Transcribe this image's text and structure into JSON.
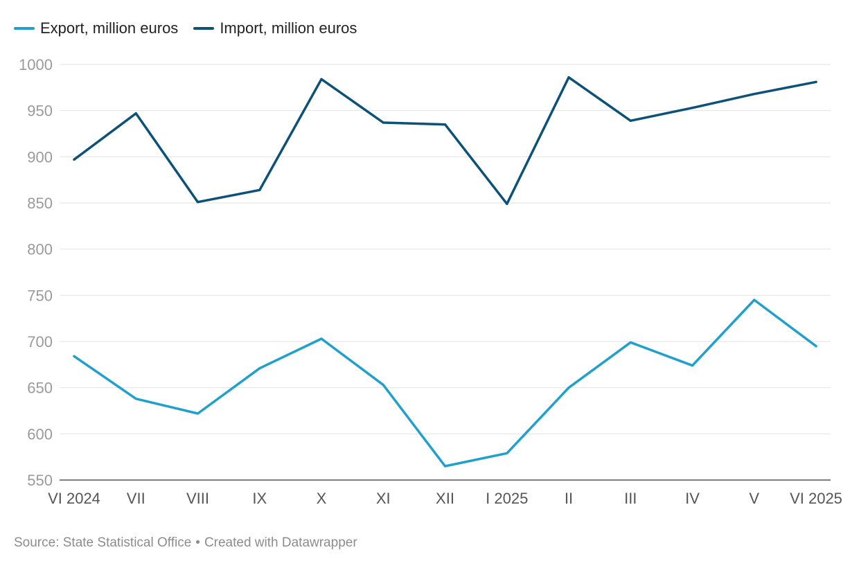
{
  "chart_data": {
    "type": "line",
    "categories": [
      "VI 2024",
      "VII",
      "VIII",
      "IX",
      "X",
      "XI",
      "XII",
      "I 2025",
      "II",
      "III",
      "IV",
      "V",
      "VI 2025"
    ],
    "series": [
      {
        "name": "Export, million euros",
        "color": "#1fa0cd",
        "values": [
          684,
          638,
          622,
          671,
          703,
          653,
          565,
          579,
          650,
          699,
          674,
          745,
          695
        ]
      },
      {
        "name": "Import, million euros",
        "color": "#0c5177",
        "values": [
          897,
          947,
          851,
          864,
          984,
          937,
          935,
          849,
          986,
          939,
          953,
          968,
          981
        ]
      }
    ],
    "y_ticks": [
      1000,
      950,
      900,
      850,
      800,
      750,
      700,
      650,
      600,
      550
    ],
    "ylim": [
      550,
      1000
    ],
    "grid": true,
    "legend_position": "top-left"
  },
  "footer": {
    "source": "Source: State Statistical Office",
    "separator": "•",
    "credit": "Created with Datawrapper"
  }
}
